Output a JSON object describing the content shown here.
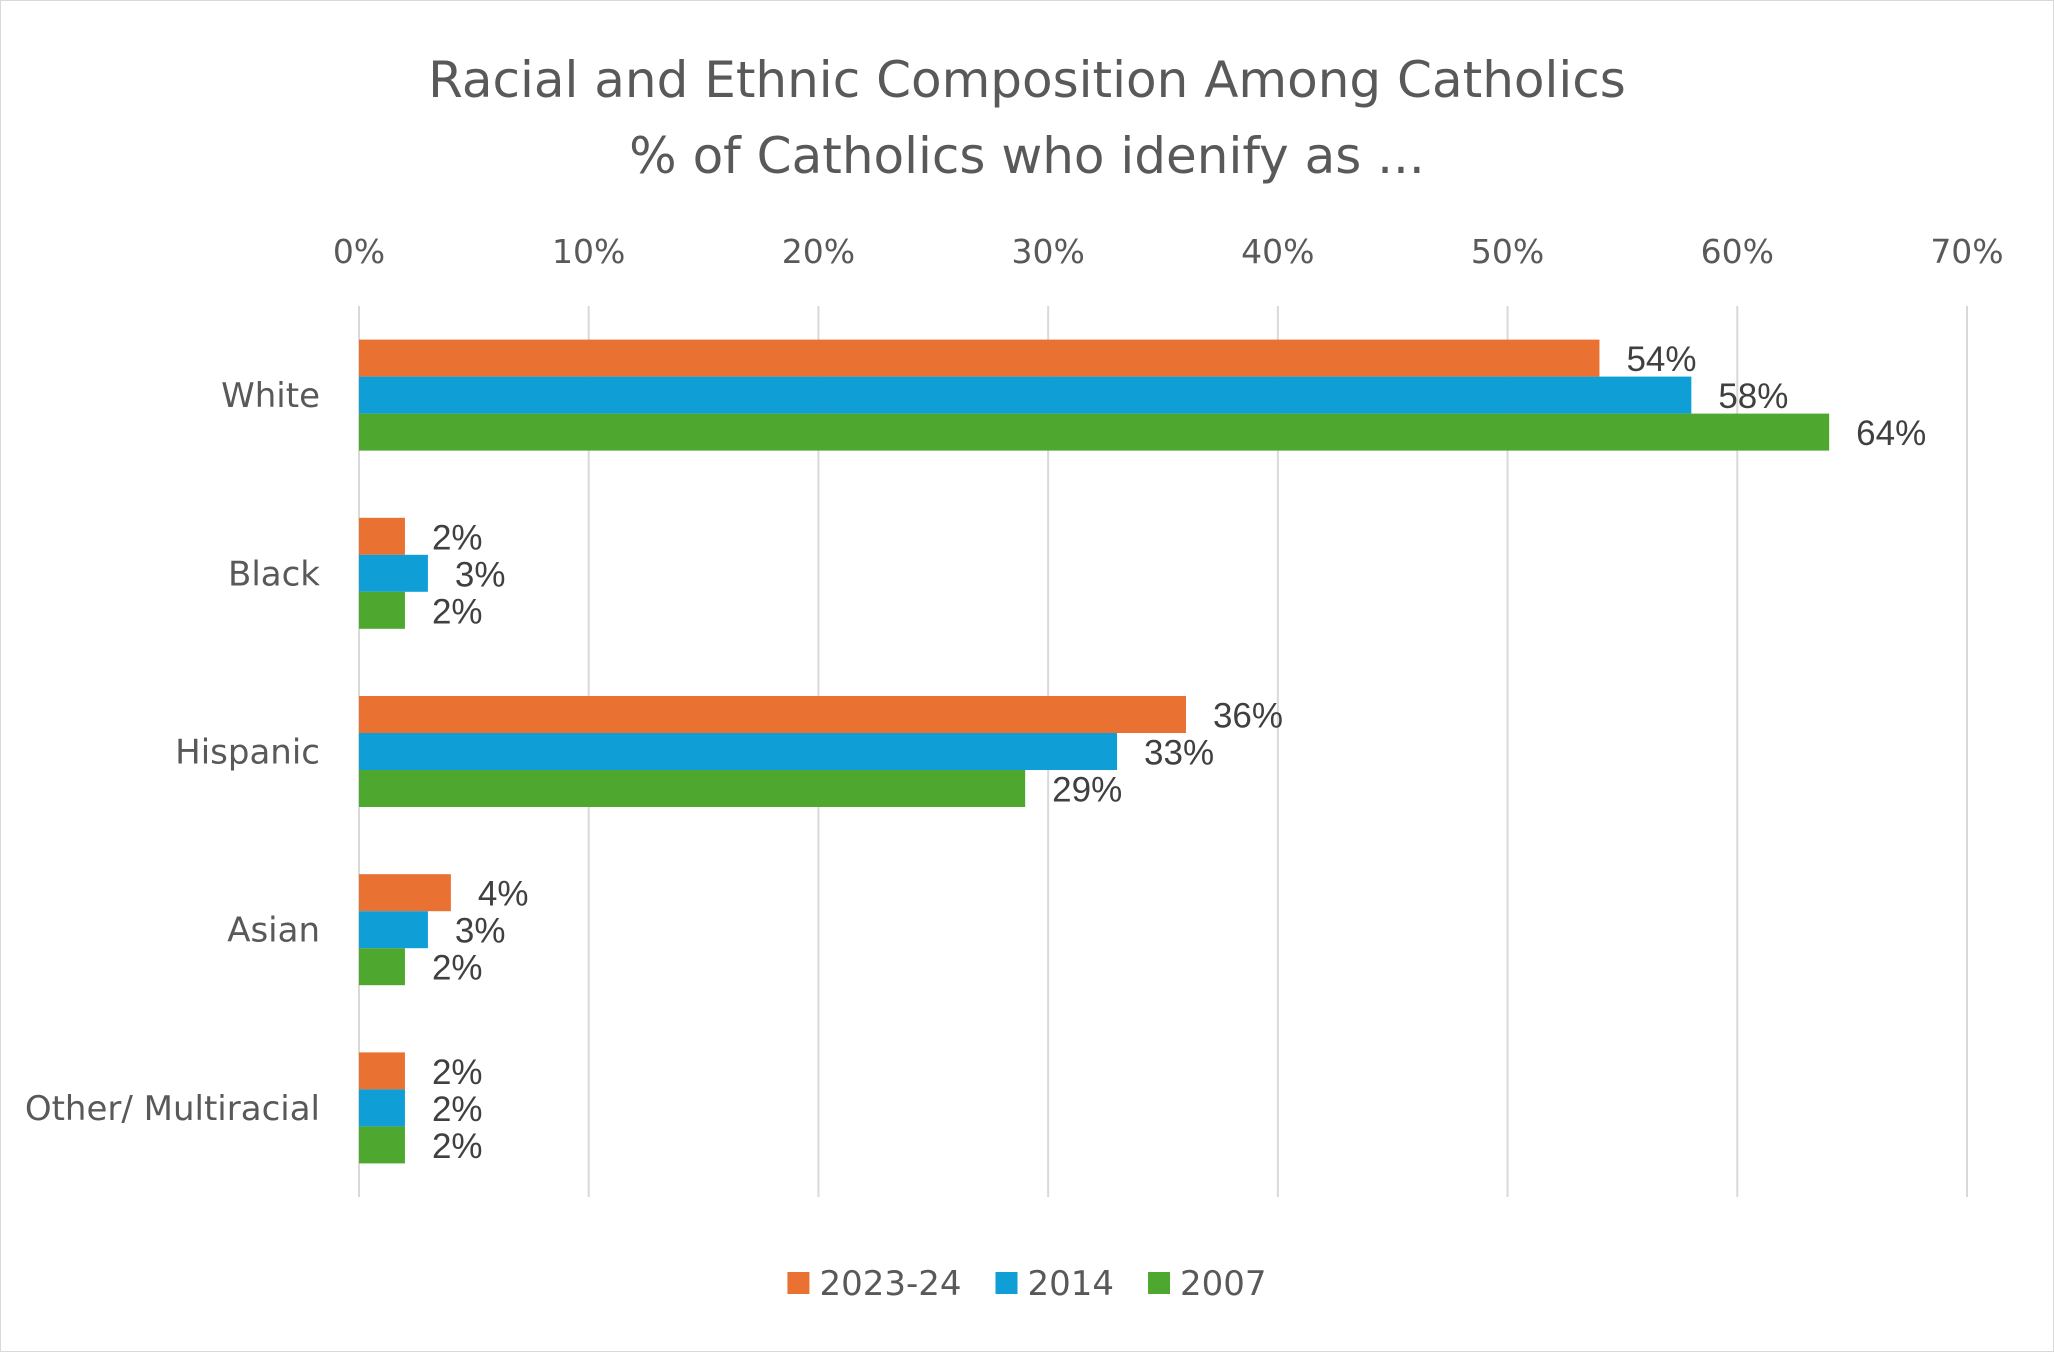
{
  "chart_data": {
    "type": "bar",
    "orientation": "horizontal",
    "title": "Racial and Ethnic Composition Among Catholics",
    "subtitle": "% of Catholics who idenify as ...",
    "categories": [
      "White",
      "Black",
      "Hispanic",
      "Asian",
      "Other/ Multiracial"
    ],
    "series": [
      {
        "name": "2023-24",
        "color": "#E97132",
        "values": [
          54,
          2,
          36,
          4,
          2
        ]
      },
      {
        "name": "2014",
        "color": "#0F9ED5",
        "values": [
          58,
          3,
          33,
          3,
          2
        ]
      },
      {
        "name": "2007",
        "color": "#4EA72E",
        "values": [
          64,
          2,
          29,
          2,
          2
        ]
      }
    ],
    "x_ticks": [
      "0%",
      "10%",
      "20%",
      "30%",
      "40%",
      "50%",
      "60%",
      "70%"
    ],
    "xlim": [
      0,
      70
    ],
    "value_suffix": "%",
    "axis_position": "top",
    "grid": true,
    "legend_position": "bottom"
  }
}
